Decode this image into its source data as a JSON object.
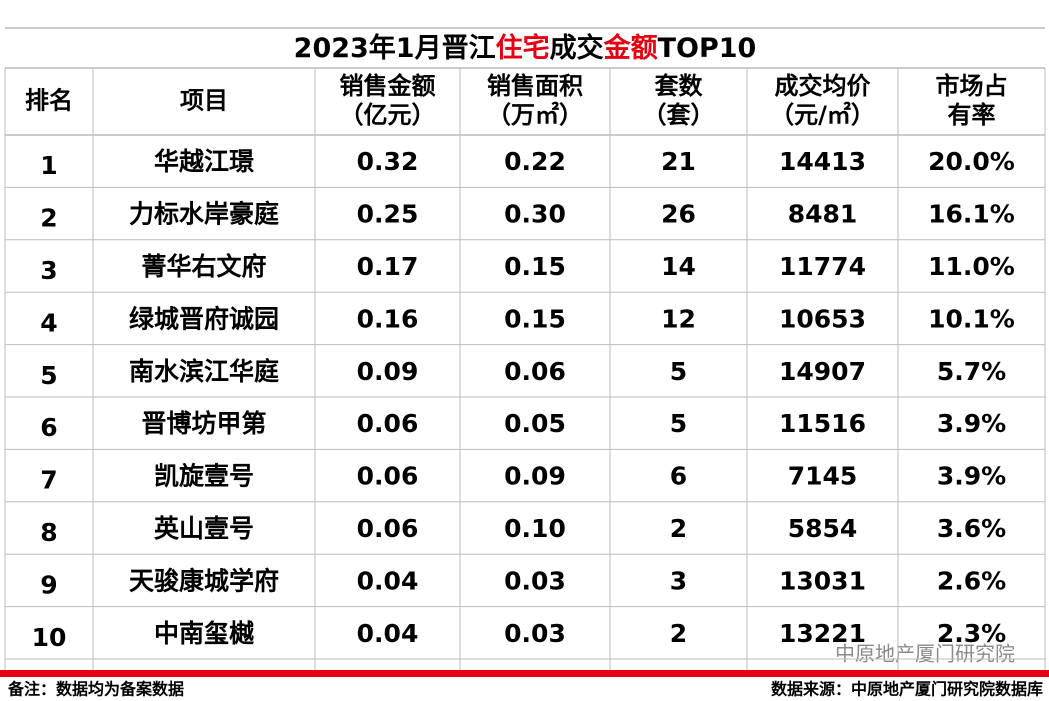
{
  "title": [
    {
      "text": "2023年1月晋江",
      "color": "#000000"
    },
    {
      "text": "住宅",
      "color": "#e60012"
    },
    {
      "text": "成交",
      "color": "#000000"
    },
    {
      "text": "金额",
      "color": "#e60012"
    },
    {
      "text": "TOP10",
      "color": "#000000"
    }
  ],
  "table": {
    "header": [
      [
        "排名"
      ],
      [
        "项目"
      ],
      [
        "销售金额",
        "（亿元）"
      ],
      [
        "销售面积",
        "（万㎡）"
      ],
      [
        "套数",
        "（套）"
      ],
      [
        "成交均价",
        "（元/㎡）"
      ],
      [
        "市场占",
        "有率"
      ]
    ],
    "rows": [
      [
        "1",
        "华越江璟",
        "0.32",
        "0.22",
        "21",
        "14413",
        "20.0%"
      ],
      [
        "2",
        "力标水岸豪庭",
        "0.25",
        "0.30",
        "26",
        "8481",
        "16.1%"
      ],
      [
        "3",
        "菁华右文府",
        "0.17",
        "0.15",
        "14",
        "11774",
        "11.0%"
      ],
      [
        "4",
        "绿城晋府诚园",
        "0.16",
        "0.15",
        "12",
        "10653",
        "10.1%"
      ],
      [
        "5",
        "南水滨江华庭",
        "0.09",
        "0.06",
        "5",
        "14907",
        "5.7%"
      ],
      [
        "6",
        "晋博坊甲第",
        "0.06",
        "0.05",
        "5",
        "11516",
        "3.9%"
      ],
      [
        "7",
        "凯旋壹号",
        "0.06",
        "0.09",
        "6",
        "7145",
        "3.9%"
      ],
      [
        "8",
        "英山壹号",
        "0.06",
        "0.10",
        "2",
        "5854",
        "3.6%"
      ],
      [
        "9",
        "天骏康城学府",
        "0.04",
        "0.03",
        "3",
        "13031",
        "2.6%"
      ],
      [
        "10",
        "中南玺樾",
        "0.04",
        "0.03",
        "2",
        "13221",
        "2.3%"
      ]
    ]
  },
  "footer": {
    "note": "备注：数据均为备案数据",
    "source": "数据来源：中原地产厦门研究院数据库"
  },
  "watermark": "中原地产厦门研究院"
}
